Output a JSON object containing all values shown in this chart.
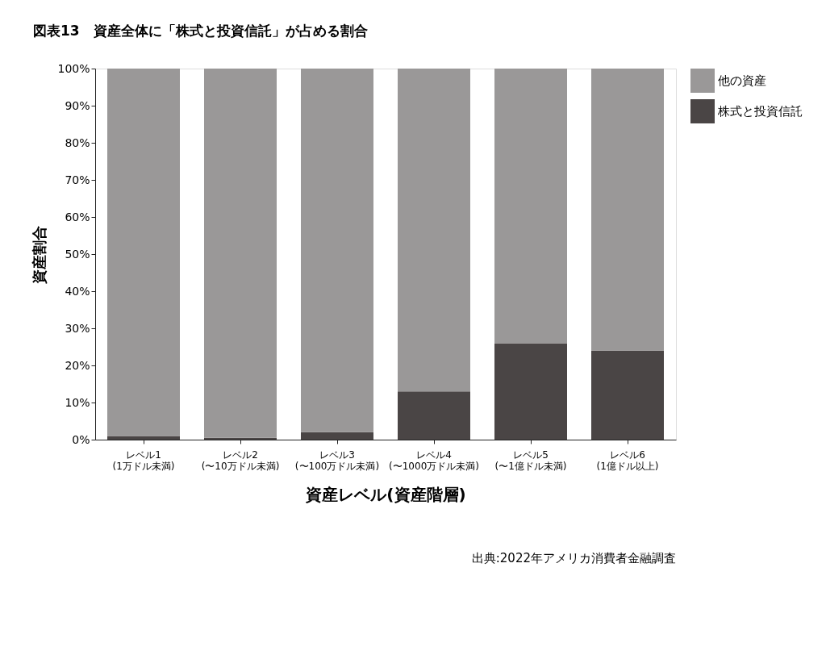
{
  "chart_data": {
    "type": "bar",
    "stacked": true,
    "title": "図表13　資産全体に「株式と投資信託」が占める割合",
    "categories": [
      "レベル1(1万ドル未満)",
      "レベル2(〜10万ドル未満)",
      "レベル3(〜100万ドル未満)",
      "レベル4(〜1000万ドル未満)",
      "レベル5(〜1億ドル未満)",
      "レベル6(1億ドル以上)"
    ],
    "series": [
      {
        "name": "株式と投資信託",
        "color": "#4a4545",
        "values": [
          1,
          0.5,
          2,
          13,
          26,
          24
        ]
      },
      {
        "name": "他の資産",
        "color": "#9a9898",
        "values": [
          99,
          99.5,
          98,
          87,
          74,
          76
        ]
      }
    ],
    "xlabel": "資産レベル(資産階層)",
    "ylabel": "資産割合",
    "ylim": [
      0,
      100
    ],
    "yticks": [
      {
        "value": 0,
        "label": "0%"
      },
      {
        "value": 10,
        "label": "10%"
      },
      {
        "value": 20,
        "label": "20%"
      },
      {
        "value": 30,
        "label": "30%"
      },
      {
        "value": 40,
        "label": "40%"
      },
      {
        "value": 50,
        "label": "50%"
      },
      {
        "value": 60,
        "label": "60%"
      },
      {
        "value": 70,
        "label": "70%"
      },
      {
        "value": 80,
        "label": "80%"
      },
      {
        "value": 90,
        "label": "90%"
      },
      {
        "value": 100,
        "label": "100%"
      }
    ],
    "grid": false,
    "legend": "right",
    "annotations": [
      "出典:2022年アメリカ消費者金融調査"
    ]
  }
}
